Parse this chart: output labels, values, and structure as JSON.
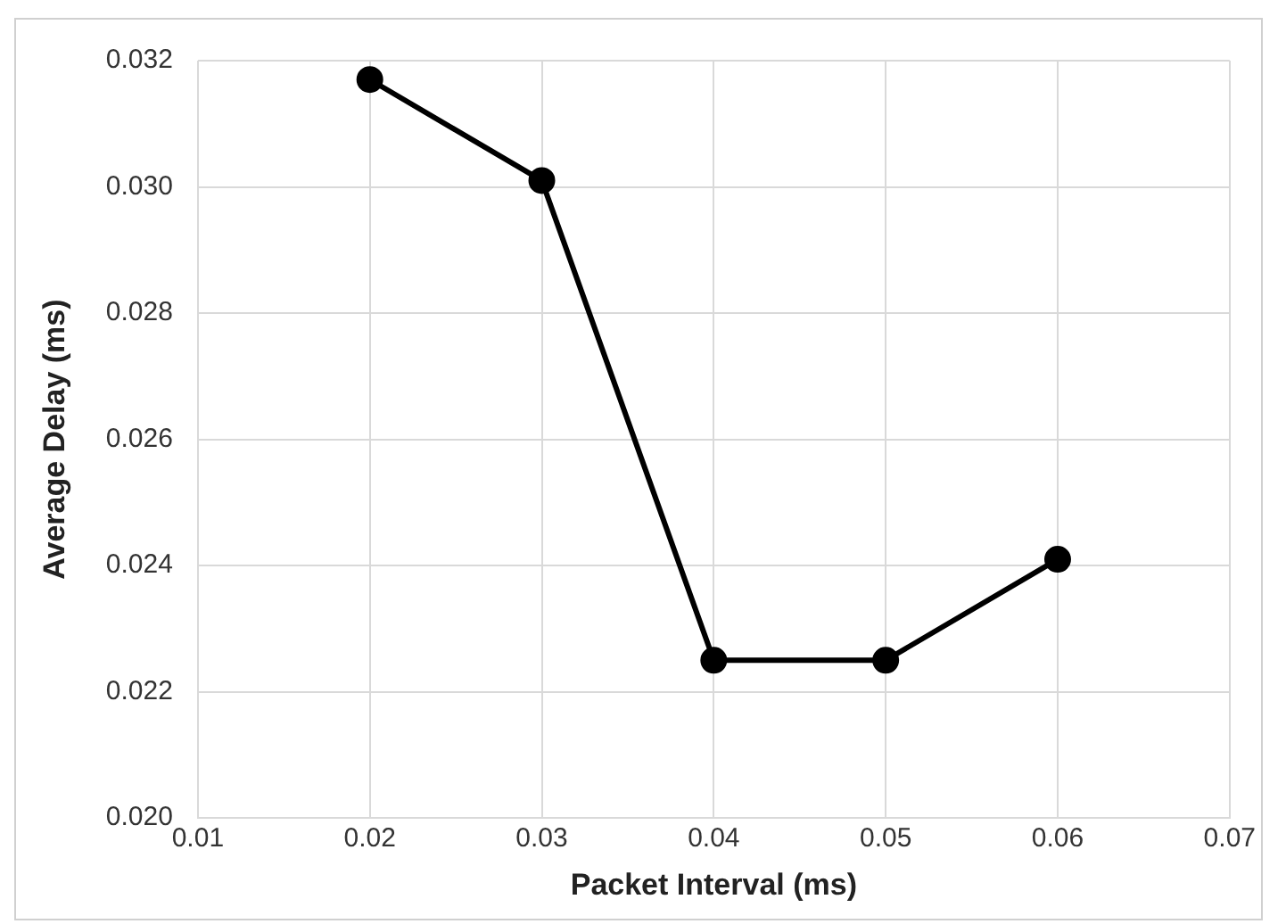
{
  "chart_data": {
    "type": "line",
    "xlabel": "Packet Interval (ms)",
    "ylabel": "Average Delay (ms)",
    "x": [
      0.02,
      0.03,
      0.04,
      0.05,
      0.06
    ],
    "series": [
      {
        "color": "#000000",
        "values": [
          0.0317,
          0.0301,
          0.0225,
          0.0225,
          0.0241
        ]
      }
    ],
    "xlim": [
      0.01,
      0.07
    ],
    "xticks": [
      0.01,
      0.02,
      0.03,
      0.04,
      0.05,
      0.06,
      0.07
    ],
    "ylim": [
      0.02,
      0.032
    ],
    "yticks": [
      {
        "value": 0.02,
        "label": "0.020"
      },
      0.022,
      0.024,
      0.026,
      0.028,
      {
        "value": 0.03,
        "label": "0.030"
      },
      0.032
    ],
    "grid": true,
    "legend": false,
    "marker": "circle",
    "line_style": "solid"
  }
}
